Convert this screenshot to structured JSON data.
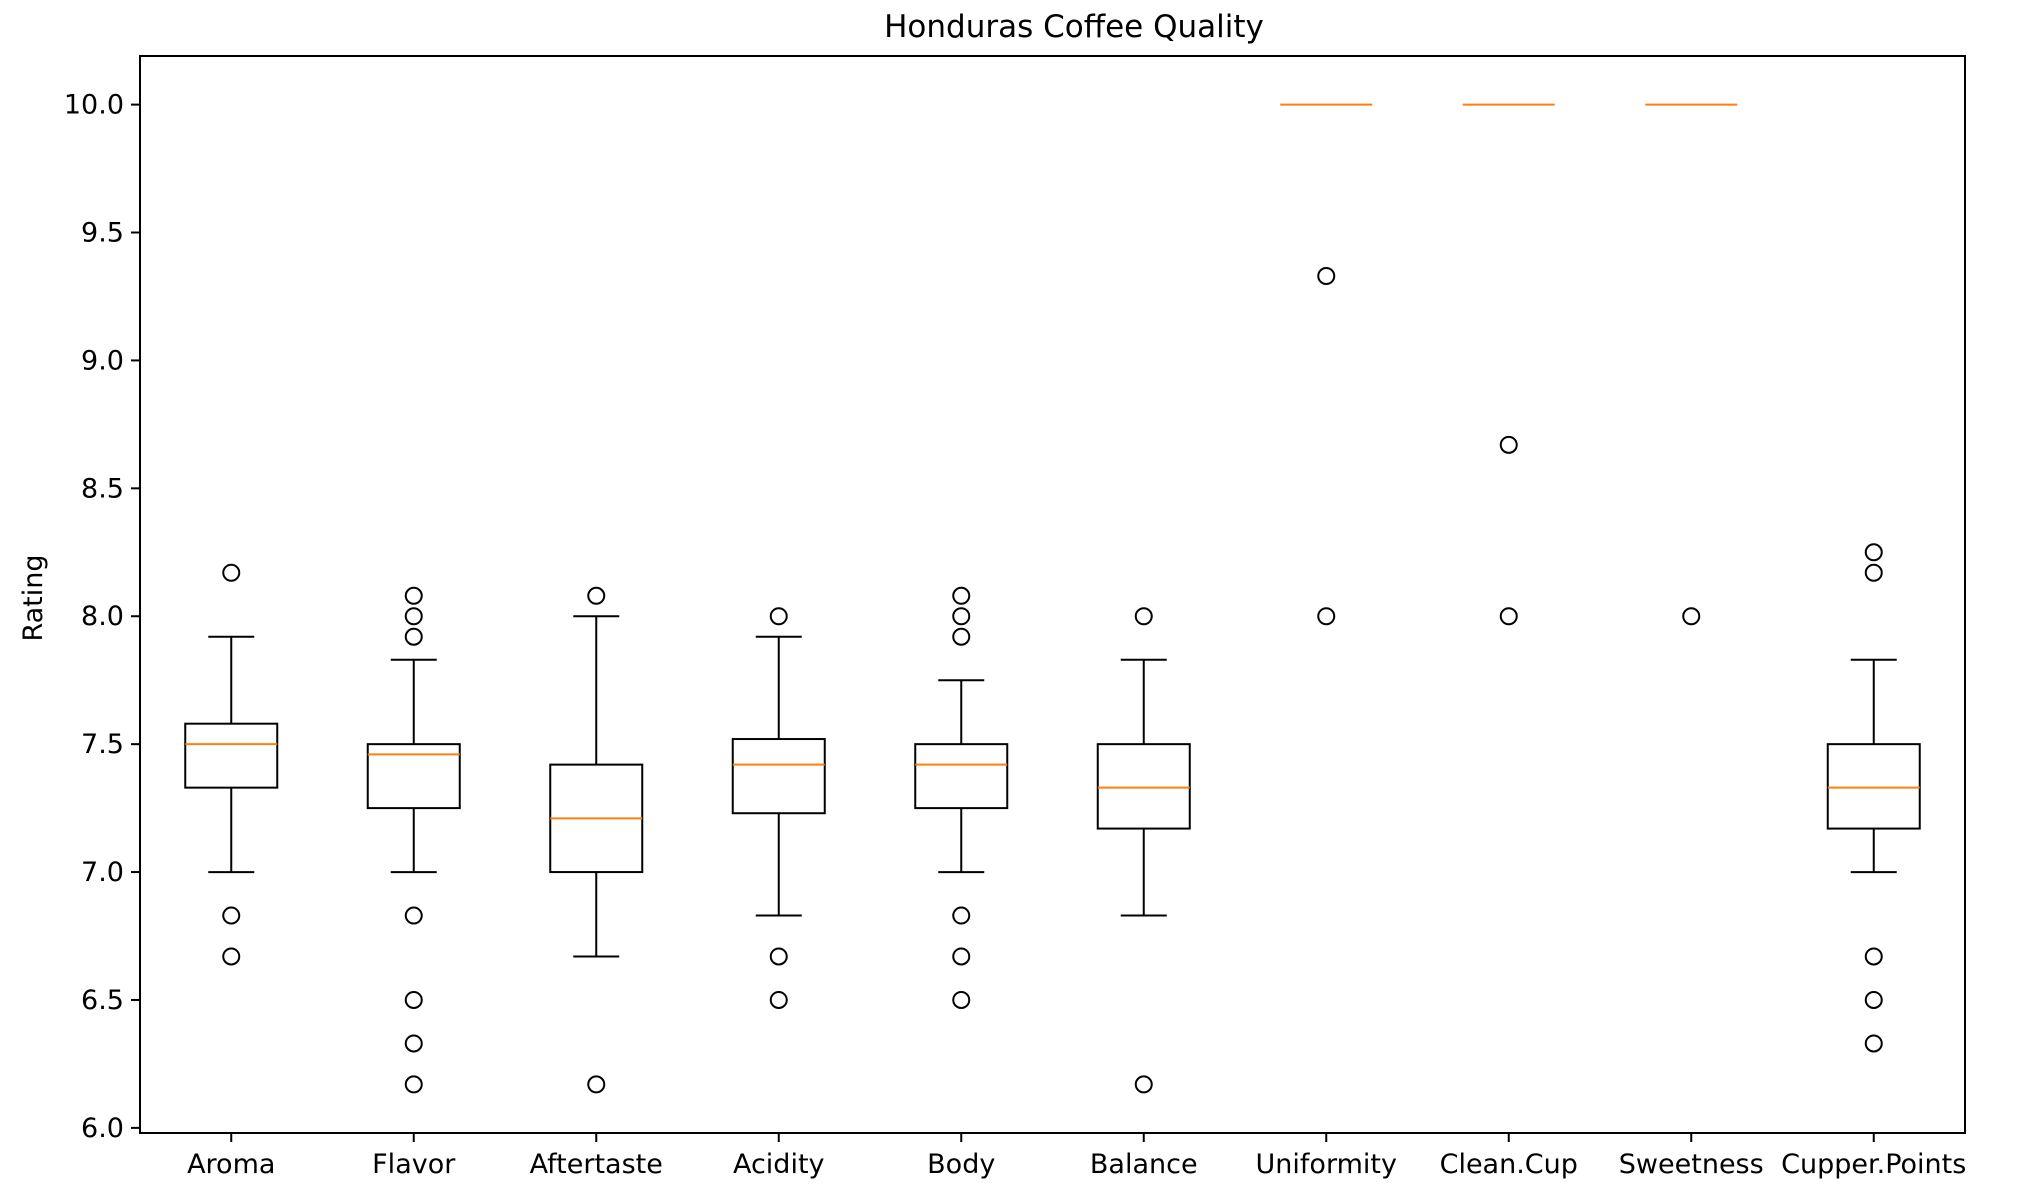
{
  "chart_data": {
    "type": "boxplot",
    "title": "Honduras Coffee Quality",
    "xlabel": "",
    "ylabel": "Rating",
    "ylim": [
      5.98,
      10.19
    ],
    "yticks": [
      6.0,
      6.5,
      7.0,
      7.5,
      8.0,
      8.5,
      9.0,
      9.5,
      10.0
    ],
    "ytick_labels": [
      "6.0",
      "6.5",
      "7.0",
      "7.5",
      "8.0",
      "8.5",
      "9.0",
      "9.5",
      "10.0"
    ],
    "grid": false,
    "colors": {
      "box": "#000000",
      "median": "#ff7f0e",
      "flier": "#000000",
      "axes": "#000000"
    },
    "categories": [
      "Aroma",
      "Flavor",
      "Aftertaste",
      "Acidity",
      "Body",
      "Balance",
      "Uniformity",
      "Clean.Cup",
      "Sweetness",
      "Cupper.Points"
    ],
    "boxes": [
      {
        "label": "Aroma",
        "whislo": 7.0,
        "q1": 7.33,
        "med": 7.5,
        "q3": 7.58,
        "whishi": 7.92,
        "fliers": [
          8.17,
          6.83,
          6.67
        ]
      },
      {
        "label": "Flavor",
        "whislo": 7.0,
        "q1": 7.25,
        "med": 7.46,
        "q3": 7.5,
        "whishi": 7.83,
        "fliers": [
          8.08,
          8.0,
          7.92,
          6.83,
          6.5,
          6.33,
          6.17
        ]
      },
      {
        "label": "Aftertaste",
        "whislo": 6.67,
        "q1": 7.0,
        "med": 7.21,
        "q3": 7.42,
        "whishi": 8.0,
        "fliers": [
          8.08,
          6.17
        ]
      },
      {
        "label": "Acidity",
        "whislo": 6.83,
        "q1": 7.23,
        "med": 7.42,
        "q3": 7.52,
        "whishi": 7.92,
        "fliers": [
          8.0,
          6.67,
          6.5
        ]
      },
      {
        "label": "Body",
        "whislo": 7.0,
        "q1": 7.25,
        "med": 7.42,
        "q3": 7.5,
        "whishi": 7.75,
        "fliers": [
          8.08,
          8.0,
          7.92,
          6.83,
          6.67,
          6.5
        ]
      },
      {
        "label": "Balance",
        "whislo": 6.83,
        "q1": 7.17,
        "med": 7.33,
        "q3": 7.5,
        "whishi": 7.83,
        "fliers": [
          8.0,
          6.17
        ]
      },
      {
        "label": "Uniformity",
        "whislo": 10.0,
        "q1": 10.0,
        "med": 10.0,
        "q3": 10.0,
        "whishi": 10.0,
        "fliers": [
          9.33,
          8.0
        ]
      },
      {
        "label": "Clean.Cup",
        "whislo": 10.0,
        "q1": 10.0,
        "med": 10.0,
        "q3": 10.0,
        "whishi": 10.0,
        "fliers": [
          8.67,
          8.0
        ]
      },
      {
        "label": "Sweetness",
        "whislo": 10.0,
        "q1": 10.0,
        "med": 10.0,
        "q3": 10.0,
        "whishi": 10.0,
        "fliers": [
          8.0
        ]
      },
      {
        "label": "Cupper.Points",
        "whislo": 7.0,
        "q1": 7.17,
        "med": 7.33,
        "q3": 7.5,
        "whishi": 7.83,
        "fliers": [
          8.25,
          8.17,
          6.67,
          6.5,
          6.33
        ]
      }
    ]
  }
}
